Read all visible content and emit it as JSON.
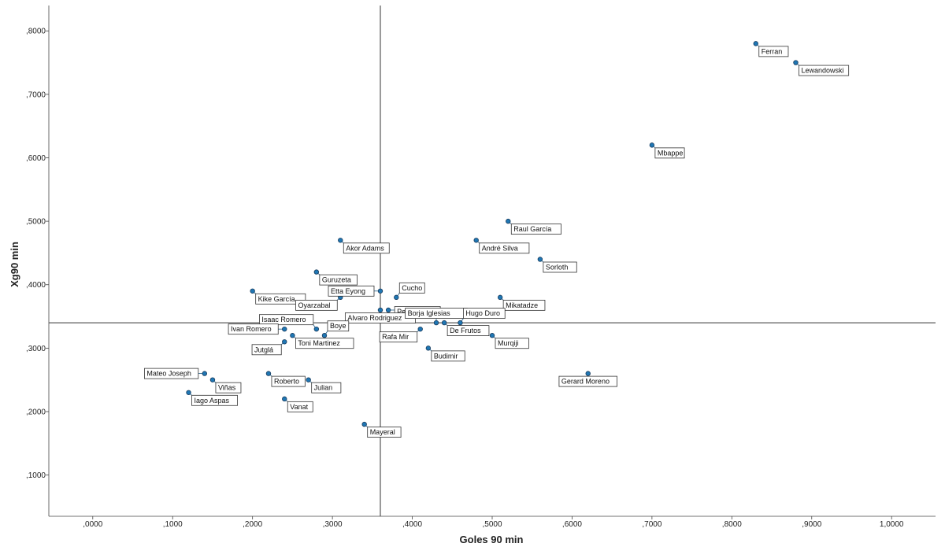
{
  "chart_data": {
    "type": "scatter",
    "xlabel": "Goles 90 min",
    "ylabel": "Xg90 min",
    "xlim": [
      -0.055,
      1.055
    ],
    "ylim": [
      0.035,
      0.84
    ],
    "x_ticks": [
      {
        "value": 0.0,
        "label": ",0000"
      },
      {
        "value": 0.1,
        "label": ",1000"
      },
      {
        "value": 0.2,
        "label": ",2000"
      },
      {
        "value": 0.3,
        "label": ",3000"
      },
      {
        "value": 0.4,
        "label": ",4000"
      },
      {
        "value": 0.5,
        "label": ",5000"
      },
      {
        "value": 0.6,
        "label": ",6000"
      },
      {
        "value": 0.7,
        "label": ",7000"
      },
      {
        "value": 0.8,
        "label": ",8000"
      },
      {
        "value": 0.9,
        "label": ",9000"
      },
      {
        "value": 1.0,
        "label": "1,0000"
      }
    ],
    "y_ticks": [
      {
        "value": 0.1,
        "label": ",1000"
      },
      {
        "value": 0.2,
        "label": ",2000"
      },
      {
        "value": 0.3,
        "label": ",3000"
      },
      {
        "value": 0.4,
        "label": ",4000"
      },
      {
        "value": 0.5,
        "label": ",5000"
      },
      {
        "value": 0.6,
        "label": ",6000"
      },
      {
        "value": 0.7,
        "label": ",7000"
      },
      {
        "value": 0.8,
        "label": ",8000"
      }
    ],
    "reference_lines": {
      "x": 0.36,
      "y": 0.34
    },
    "grid": false,
    "points": [
      {
        "name": "Ferran",
        "x": 0.83,
        "y": 0.78,
        "label_pos": "below-right"
      },
      {
        "name": "Lewandowski",
        "x": 0.88,
        "y": 0.75,
        "label_pos": "below-right"
      },
      {
        "name": "Mbappe",
        "x": 0.7,
        "y": 0.62,
        "label_pos": "below-right"
      },
      {
        "name": "Raul García",
        "x": 0.52,
        "y": 0.5,
        "label_pos": "below-right"
      },
      {
        "name": "André Silva",
        "x": 0.48,
        "y": 0.47,
        "label_pos": "below-right"
      },
      {
        "name": "Sorloth",
        "x": 0.56,
        "y": 0.44,
        "label_pos": "below-right"
      },
      {
        "name": "Akor Adams",
        "x": 0.31,
        "y": 0.47,
        "label_pos": "below-right"
      },
      {
        "name": "Guruzeta",
        "x": 0.28,
        "y": 0.42,
        "label_pos": "below-right"
      },
      {
        "name": "Kike García",
        "x": 0.2,
        "y": 0.39,
        "label_pos": "below-right"
      },
      {
        "name": "Oyarzabal",
        "x": 0.31,
        "y": 0.38,
        "label_pos": "below-left"
      },
      {
        "name": "Etta Eyong",
        "x": 0.36,
        "y": 0.39,
        "label_pos": "left"
      },
      {
        "name": "Cucho",
        "x": 0.38,
        "y": 0.38,
        "label_pos": "above-right"
      },
      {
        "name": "Pere Milla",
        "x": 0.37,
        "y": 0.36,
        "label_pos": "right"
      },
      {
        "name": "Alvaro Rodriguez",
        "x": 0.36,
        "y": 0.36,
        "label_pos": "below"
      },
      {
        "name": "Mikatadze",
        "x": 0.51,
        "y": 0.38,
        "label_pos": "below-right"
      },
      {
        "name": "Borja Iglesias",
        "x": 0.43,
        "y": 0.34,
        "label_pos": "above"
      },
      {
        "name": "Hugo Duro",
        "x": 0.46,
        "y": 0.34,
        "label_pos": "above-right"
      },
      {
        "name": "De Frutos",
        "x": 0.44,
        "y": 0.34,
        "label_pos": "below-right"
      },
      {
        "name": "Rafa Mir",
        "x": 0.41,
        "y": 0.33,
        "label_pos": "below-left"
      },
      {
        "name": "Murqiji",
        "x": 0.5,
        "y": 0.32,
        "label_pos": "below-right"
      },
      {
        "name": "Budimir",
        "x": 0.42,
        "y": 0.3,
        "label_pos": "below-right"
      },
      {
        "name": "Isaac Romero",
        "x": 0.28,
        "y": 0.33,
        "label_pos": "above-left"
      },
      {
        "name": "Ivan Romero",
        "x": 0.24,
        "y": 0.33,
        "label_pos": "left"
      },
      {
        "name": "Boye",
        "x": 0.29,
        "y": 0.32,
        "label_pos": "above-right"
      },
      {
        "name": "Toni Martinez",
        "x": 0.25,
        "y": 0.32,
        "label_pos": "below-right"
      },
      {
        "name": "Jutglá",
        "x": 0.24,
        "y": 0.31,
        "label_pos": "below-left"
      },
      {
        "name": "Mateo Joseph",
        "x": 0.14,
        "y": 0.26,
        "label_pos": "left"
      },
      {
        "name": "Viñas",
        "x": 0.15,
        "y": 0.25,
        "label_pos": "below-right"
      },
      {
        "name": "Iago Aspas",
        "x": 0.12,
        "y": 0.23,
        "label_pos": "below-right"
      },
      {
        "name": "Roberto",
        "x": 0.22,
        "y": 0.26,
        "label_pos": "below-right"
      },
      {
        "name": "Julian",
        "x": 0.27,
        "y": 0.25,
        "label_pos": "below-right"
      },
      {
        "name": "Vanat",
        "x": 0.24,
        "y": 0.22,
        "label_pos": "below-right"
      },
      {
        "name": "Mayeral",
        "x": 0.34,
        "y": 0.18,
        "label_pos": "below-right"
      },
      {
        "name": "Gerard Moreno",
        "x": 0.62,
        "y": 0.26,
        "label_pos": "below"
      }
    ],
    "colors": {
      "point": "#1f77b4",
      "point_stroke": "#1a3c5e",
      "leader": "#1f5f8b"
    }
  }
}
